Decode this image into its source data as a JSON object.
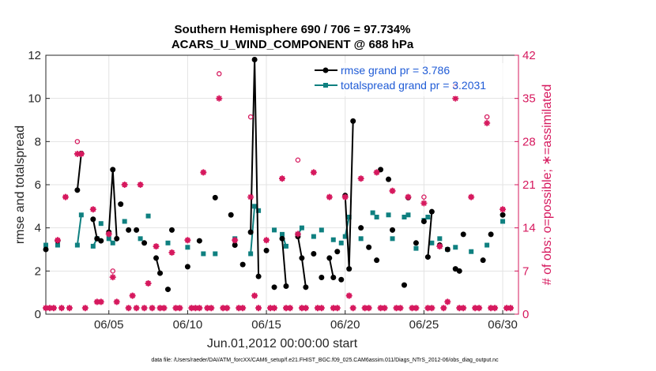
{
  "chart_data": {
    "type": "line",
    "title": "Southern Hemisphere 690 / 706 = 97.734%",
    "subtitle": "ACARS_U_WIND_COMPONENT @ 688 hPa",
    "xlabel": "Jun.01,2012 00:00:00 start",
    "ylabel": "rmse and totalspread",
    "ylabel_right": "# of obs: o=possible; ∗=assimilated",
    "footer": "data file: /Users/raeder/DAI/ATM_forcXX/CAM6_setup/f.e21.FHIST_BGC.f09_025.CAM6assim.011/Diags_NTrS_2012-06/obs_diag_output.nc",
    "xlim": [
      1,
      31
    ],
    "ylim": [
      0,
      12
    ],
    "ylim_right": [
      0,
      42
    ],
    "x_ticks": [
      5,
      10,
      15,
      20,
      25,
      30
    ],
    "x_tick_labels": [
      "06/05",
      "06/10",
      "06/15",
      "06/20",
      "06/25",
      "06/30"
    ],
    "y_ticks": [
      0,
      2,
      4,
      6,
      8,
      10,
      12
    ],
    "y_tick_labels": [
      "0",
      "2",
      "4",
      "6",
      "8",
      "10",
      "12"
    ],
    "y_ticks_right": [
      0,
      7,
      14,
      21,
      28,
      35,
      42
    ],
    "y_tick_labels_right": [
      "0",
      "7",
      "14",
      "21",
      "28",
      "35",
      "42"
    ],
    "grid": true,
    "legend_position": "top-right",
    "colors": {
      "rmse": "#000000",
      "spread": "#0f8080",
      "obs": "#d6195e",
      "legend_text": "#1f5bd6"
    },
    "series": [
      {
        "name": "rmse grand pr = 3.786",
        "axis": "left",
        "segments": [
          [
            [
              1.0,
              3.0
            ]
          ],
          [
            [
              1.75,
              3.4
            ]
          ],
          [
            [
              3.0,
              5.75
            ],
            [
              3.25,
              7.45
            ]
          ],
          [
            [
              4.0,
              4.4
            ],
            [
              4.25,
              3.5
            ],
            [
              4.5,
              3.4
            ]
          ],
          [
            [
              5.0,
              3.8
            ],
            [
              5.25,
              6.7
            ],
            [
              5.5,
              3.5
            ]
          ],
          [
            [
              5.75,
              5.1
            ]
          ],
          [
            [
              6.25,
              3.9
            ]
          ],
          [
            [
              6.75,
              3.9
            ]
          ],
          [
            [
              7.25,
              3.3
            ]
          ],
          [
            [
              8.0,
              2.6
            ],
            [
              8.25,
              1.9
            ]
          ],
          [
            [
              8.75,
              1.15
            ]
          ],
          [
            [
              9.0,
              3.9
            ]
          ],
          [
            [
              10.0,
              2.2
            ]
          ],
          [
            [
              10.75,
              3.4
            ]
          ],
          [
            [
              11.75,
              5.4
            ]
          ],
          [
            [
              12.75,
              4.6
            ]
          ],
          [
            [
              13.0,
              3.2
            ]
          ],
          [
            [
              13.5,
              2.3
            ]
          ],
          [
            [
              14.0,
              3.8
            ],
            [
              14.25,
              11.8
            ],
            [
              14.5,
              1.75
            ]
          ],
          [
            [
              15.0,
              2.95
            ]
          ],
          [
            [
              15.5,
              1.25
            ]
          ],
          [
            [
              16.0,
              3.5
            ],
            [
              16.25,
              1.3
            ]
          ],
          [
            [
              17.0,
              3.6
            ],
            [
              17.25,
              2.6
            ],
            [
              17.5,
              1.25
            ]
          ],
          [
            [
              18.0,
              2.8
            ]
          ],
          [
            [
              18.5,
              1.7
            ]
          ],
          [
            [
              19.0,
              2.6
            ],
            [
              19.25,
              1.7
            ]
          ],
          [
            [
              19.5,
              2.9
            ]
          ],
          [
            [
              19.75,
              1.6
            ]
          ],
          [
            [
              20.0,
              5.5
            ],
            [
              20.25,
              2.1
            ],
            [
              20.5,
              8.95
            ]
          ],
          [
            [
              21.0,
              4.0
            ]
          ],
          [
            [
              21.5,
              3.1
            ]
          ],
          [
            [
              22.0,
              2.5
            ]
          ],
          [
            [
              22.25,
              6.7
            ]
          ],
          [
            [
              22.75,
              6.25
            ]
          ],
          [
            [
              23.0,
              3.9
            ]
          ],
          [
            [
              23.75,
              1.35
            ]
          ],
          [
            [
              24.0,
              5.4
            ]
          ],
          [
            [
              24.5,
              3.3
            ]
          ],
          [
            [
              25.0,
              4.3
            ]
          ],
          [
            [
              25.25,
              2.65
            ],
            [
              25.5,
              4.75
            ]
          ],
          [
            [
              26.0,
              3.2
            ]
          ],
          [
            [
              26.5,
              3.0
            ]
          ],
          [
            [
              27.0,
              2.1
            ],
            [
              27.25,
              2.0
            ]
          ],
          [
            [
              27.5,
              3.7
            ]
          ],
          [
            [
              28.75,
              2.5
            ]
          ],
          [
            [
              29.25,
              3.7
            ]
          ],
          [
            [
              30.0,
              4.6
            ]
          ]
        ]
      },
      {
        "name": "totalspread grand pr = 3.2031",
        "axis": "left",
        "segments": [
          [
            [
              1.0,
              3.2
            ]
          ],
          [
            [
              1.75,
              3.2
            ]
          ],
          [
            [
              3.0,
              3.2
            ],
            [
              3.25,
              4.6
            ]
          ],
          [
            [
              4.0,
              3.15
            ],
            [
              4.25,
              3.5
            ]
          ],
          [
            [
              4.5,
              4.2
            ]
          ],
          [
            [
              5.0,
              3.5
            ],
            [
              5.25,
              3.3
            ]
          ],
          [
            [
              6.0,
              4.3
            ]
          ],
          [
            [
              7.0,
              3.5
            ]
          ],
          [
            [
              7.5,
              4.55
            ]
          ],
          [
            [
              8.75,
              3.3
            ]
          ],
          [
            [
              10.0,
              3.1
            ]
          ],
          [
            [
              11.0,
              2.8
            ]
          ],
          [
            [
              11.75,
              2.8
            ]
          ],
          [
            [
              13.0,
              3.5
            ]
          ],
          [
            [
              14.0,
              2.8
            ],
            [
              14.25,
              5.0
            ],
            [
              14.5,
              4.8
            ]
          ],
          [
            [
              15.5,
              3.9
            ]
          ],
          [
            [
              16.0,
              3.7
            ],
            [
              16.25,
              3.15
            ]
          ],
          [
            [
              17.0,
              3.7
            ],
            [
              17.25,
              4.0
            ]
          ],
          [
            [
              18.0,
              3.6
            ]
          ],
          [
            [
              18.5,
              3.9
            ]
          ],
          [
            [
              19.25,
              3.45
            ]
          ],
          [
            [
              19.75,
              3.3
            ]
          ],
          [
            [
              20.0,
              3.6
            ],
            [
              20.25,
              4.5
            ]
          ],
          [
            [
              21.0,
              3.5
            ]
          ],
          [
            [
              21.75,
              4.7
            ]
          ],
          [
            [
              22.0,
              4.5
            ]
          ],
          [
            [
              22.75,
              4.6
            ]
          ],
          [
            [
              23.0,
              3.5
            ]
          ],
          [
            [
              23.75,
              4.5
            ]
          ],
          [
            [
              24.0,
              4.6
            ]
          ],
          [
            [
              24.5,
              3.05
            ]
          ],
          [
            [
              25.0,
              4.35
            ],
            [
              25.25,
              4.5
            ]
          ],
          [
            [
              25.5,
              3.3
            ]
          ],
          [
            [
              26.0,
              3.5
            ]
          ],
          [
            [
              26.5,
              3.0
            ]
          ],
          [
            [
              27.0,
              3.1
            ]
          ],
          [
            [
              28.0,
              2.9
            ]
          ],
          [
            [
              29.0,
              3.2
            ]
          ],
          [
            [
              30.0,
              4.3
            ]
          ]
        ]
      }
    ],
    "obs_possible": [
      [
        1,
        1
      ],
      [
        1.25,
        1
      ],
      [
        1.5,
        1
      ],
      [
        1.75,
        12
      ],
      [
        2,
        1
      ],
      [
        2.25,
        19
      ],
      [
        2.5,
        1
      ],
      [
        3,
        28
      ],
      [
        3.25,
        26
      ],
      [
        3.5,
        1
      ],
      [
        4,
        17
      ],
      [
        4.25,
        2
      ],
      [
        4.5,
        2
      ],
      [
        5,
        13
      ],
      [
        5.25,
        7
      ],
      [
        5.5,
        2
      ],
      [
        6,
        21
      ],
      [
        6.25,
        1
      ],
      [
        6.5,
        3
      ],
      [
        6.75,
        1
      ],
      [
        7,
        21
      ],
      [
        7.25,
        1
      ],
      [
        7.5,
        5
      ],
      [
        7.75,
        1
      ],
      [
        8,
        11
      ],
      [
        8.25,
        1
      ],
      [
        8.5,
        1
      ],
      [
        9,
        10
      ],
      [
        9.25,
        1
      ],
      [
        9.5,
        1
      ],
      [
        10,
        12
      ],
      [
        10.25,
        1
      ],
      [
        10.5,
        1
      ],
      [
        10.75,
        1
      ],
      [
        11,
        23
      ],
      [
        11.25,
        1
      ],
      [
        11.5,
        1
      ],
      [
        12,
        39
      ],
      [
        12.25,
        1
      ],
      [
        12.5,
        1
      ],
      [
        13,
        12
      ],
      [
        13.25,
        1
      ],
      [
        13.5,
        1
      ],
      [
        14,
        32
      ],
      [
        14.25,
        3
      ],
      [
        14.5,
        1
      ],
      [
        15,
        12
      ],
      [
        15.25,
        1
      ],
      [
        15.5,
        1
      ],
      [
        16,
        22
      ],
      [
        16.25,
        1
      ],
      [
        16.5,
        1
      ],
      [
        17,
        25
      ],
      [
        17.25,
        1
      ],
      [
        17.5,
        1
      ],
      [
        18,
        23
      ],
      [
        18.25,
        1
      ],
      [
        18.5,
        1
      ],
      [
        19,
        19
      ],
      [
        19.25,
        1
      ],
      [
        19.5,
        1
      ],
      [
        20,
        19
      ],
      [
        20.25,
        3
      ],
      [
        20.5,
        1
      ],
      [
        21,
        22
      ],
      [
        21.25,
        1
      ],
      [
        21.5,
        1
      ],
      [
        22,
        23
      ],
      [
        22.25,
        1
      ],
      [
        22.5,
        1
      ],
      [
        23,
        20
      ],
      [
        23.25,
        1
      ],
      [
        23.5,
        1
      ],
      [
        24,
        19
      ],
      [
        24.25,
        1
      ],
      [
        24.5,
        1
      ],
      [
        25,
        19
      ],
      [
        25.25,
        1
      ],
      [
        25.5,
        1
      ],
      [
        26,
        11
      ],
      [
        26.25,
        1
      ],
      [
        26.5,
        2
      ],
      [
        27,
        37
      ],
      [
        27.25,
        1
      ],
      [
        27.5,
        1
      ],
      [
        28,
        19
      ],
      [
        28.25,
        1
      ],
      [
        28.5,
        1
      ],
      [
        29,
        32
      ],
      [
        29.25,
        1
      ],
      [
        29.5,
        1
      ],
      [
        30,
        17
      ],
      [
        30.25,
        1
      ],
      [
        30.5,
        1
      ]
    ],
    "obs_assimilated": [
      [
        1,
        1
      ],
      [
        1.25,
        1
      ],
      [
        1.5,
        1
      ],
      [
        1.75,
        12
      ],
      [
        2,
        1
      ],
      [
        2.25,
        19
      ],
      [
        2.5,
        1
      ],
      [
        3,
        26
      ],
      [
        3.25,
        26
      ],
      [
        3.5,
        1
      ],
      [
        4,
        17
      ],
      [
        4.25,
        2
      ],
      [
        4.5,
        2
      ],
      [
        5,
        13
      ],
      [
        5.25,
        6
      ],
      [
        5.5,
        2
      ],
      [
        6,
        21
      ],
      [
        6.25,
        1
      ],
      [
        6.5,
        3
      ],
      [
        6.75,
        1
      ],
      [
        7,
        21
      ],
      [
        7.25,
        1
      ],
      [
        7.5,
        5
      ],
      [
        7.75,
        1
      ],
      [
        8,
        11
      ],
      [
        8.25,
        1
      ],
      [
        8.5,
        1
      ],
      [
        9,
        10
      ],
      [
        9.25,
        1
      ],
      [
        9.5,
        1
      ],
      [
        10,
        12
      ],
      [
        10.25,
        1
      ],
      [
        10.5,
        1
      ],
      [
        10.75,
        1
      ],
      [
        11,
        23
      ],
      [
        11.25,
        1
      ],
      [
        11.5,
        1
      ],
      [
        12,
        35
      ],
      [
        12.25,
        1
      ],
      [
        12.5,
        1
      ],
      [
        13,
        12
      ],
      [
        13.25,
        1
      ],
      [
        13.5,
        1
      ],
      [
        14,
        19
      ],
      [
        14.25,
        3
      ],
      [
        14.5,
        1
      ],
      [
        15,
        12
      ],
      [
        15.25,
        1
      ],
      [
        15.5,
        1
      ],
      [
        16,
        22
      ],
      [
        16.25,
        1
      ],
      [
        16.5,
        1
      ],
      [
        17,
        13
      ],
      [
        17.25,
        1
      ],
      [
        17.5,
        1
      ],
      [
        18,
        23
      ],
      [
        18.25,
        1
      ],
      [
        18.5,
        1
      ],
      [
        19,
        19
      ],
      [
        19.25,
        1
      ],
      [
        19.5,
        1
      ],
      [
        20,
        19
      ],
      [
        20.25,
        3
      ],
      [
        20.5,
        1
      ],
      [
        21,
        22
      ],
      [
        21.25,
        1
      ],
      [
        21.5,
        1
      ],
      [
        22,
        23
      ],
      [
        22.25,
        1
      ],
      [
        22.5,
        1
      ],
      [
        23,
        20
      ],
      [
        23.25,
        1
      ],
      [
        23.5,
        1
      ],
      [
        24,
        19
      ],
      [
        24.25,
        1
      ],
      [
        24.5,
        1
      ],
      [
        25,
        18
      ],
      [
        25.25,
        1
      ],
      [
        25.5,
        1
      ],
      [
        26,
        11
      ],
      [
        26.25,
        1
      ],
      [
        26.5,
        2
      ],
      [
        27,
        35
      ],
      [
        27.25,
        1
      ],
      [
        27.5,
        1
      ],
      [
        28,
        19
      ],
      [
        28.25,
        1
      ],
      [
        28.5,
        1
      ],
      [
        29,
        31
      ],
      [
        29.25,
        1
      ],
      [
        29.5,
        1
      ],
      [
        30,
        17
      ],
      [
        30.25,
        1
      ],
      [
        30.5,
        1
      ]
    ]
  }
}
